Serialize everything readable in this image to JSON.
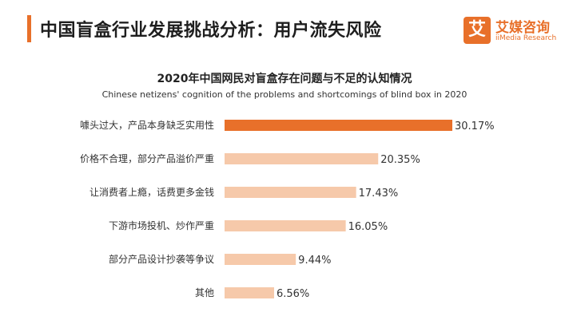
{
  "header": {
    "title": "中国盲盒行业发展挑战分析：用户流失风险",
    "brand_mark": "艾",
    "brand_name": "艾媒咨询",
    "brand_sub": "iiMedia Research"
  },
  "colors": {
    "accent": "#e8702a",
    "bar_highlight": "#e8702a",
    "bar_normal": "#f6c9aa"
  },
  "chart_data": {
    "type": "bar",
    "orientation": "horizontal",
    "title": "2020年中国网民对盲盒存在问题与不足的认知情况",
    "subtitle": "Chinese netizens' cognition of the problems and shortcomings of blind box in 2020",
    "categories": [
      "噱头过大，产品本身缺乏实用性",
      "价格不合理，部分产品溢价严重",
      "让消费者上瘾，话费更多金钱",
      "下游市场投机、炒作严重",
      "部分产品设计抄袭等争议",
      "其他"
    ],
    "values": [
      30.17,
      20.35,
      17.43,
      16.05,
      9.44,
      6.56
    ],
    "value_labels": [
      "30.17%",
      "20.35%",
      "17.43%",
      "16.05%",
      "9.44%",
      "6.56%"
    ],
    "unit": "%",
    "xlim": [
      0,
      30.17
    ],
    "grid": false,
    "legend": "none"
  }
}
